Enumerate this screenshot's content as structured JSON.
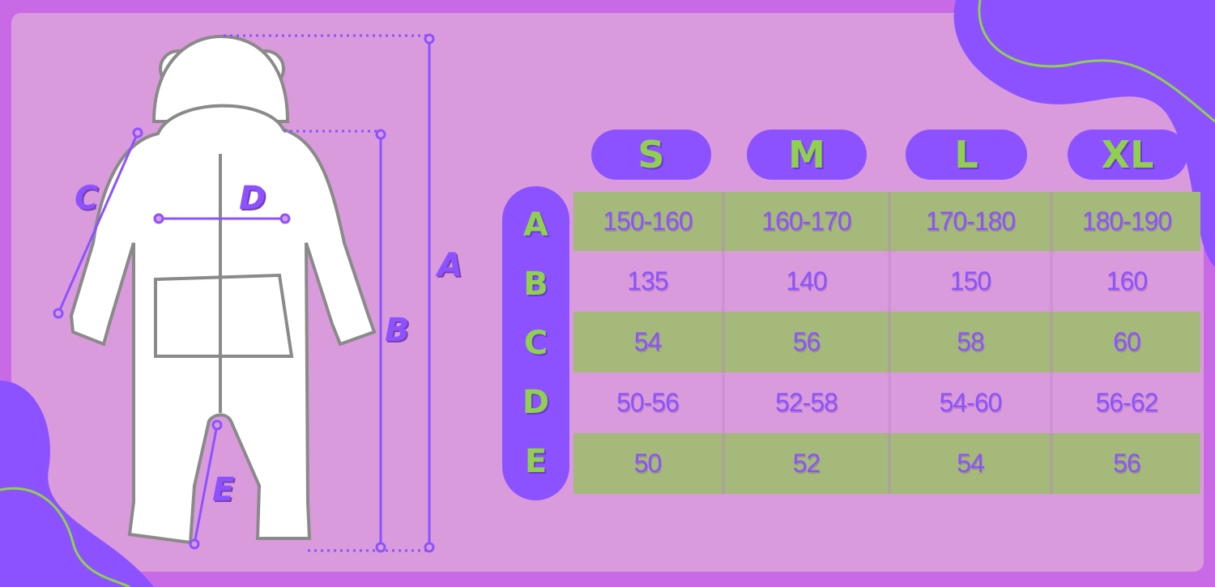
{
  "colors": {
    "accent": "#8c52ff",
    "green": "#8fd14f",
    "row_green": "#a4b97a",
    "background": "#d99bdc"
  },
  "sizes": [
    "S",
    "M",
    "L",
    "XL"
  ],
  "row_labels": [
    "A",
    "B",
    "C",
    "D",
    "E"
  ],
  "rows": [
    [
      "150-160",
      "160-170",
      "170-180",
      "180-190"
    ],
    [
      "135",
      "140",
      "150",
      "160"
    ],
    [
      "54",
      "56",
      "58",
      "60"
    ],
    [
      "50-56",
      "52-58",
      "54-60",
      "56-62"
    ],
    [
      "50",
      "52",
      "54",
      "56"
    ]
  ],
  "diagram_labels": {
    "a": "A",
    "b": "B",
    "c": "C",
    "d": "D",
    "e": "E"
  }
}
